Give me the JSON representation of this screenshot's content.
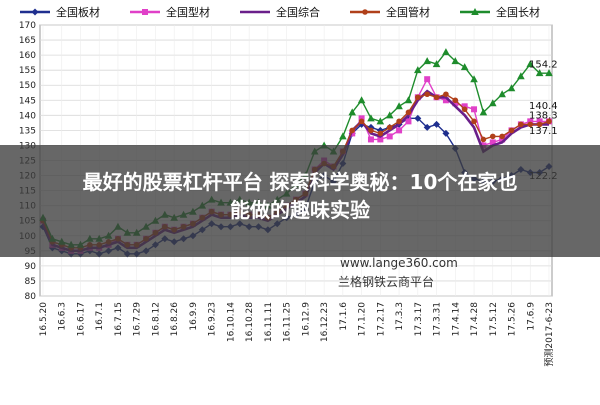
{
  "chart_data": {
    "type": "line",
    "title": "",
    "xlabel": "",
    "ylabel": "",
    "ylim": [
      80,
      170
    ],
    "yticks": [
      80,
      85,
      90,
      95,
      100,
      105,
      110,
      115,
      120,
      125,
      130,
      135,
      140,
      145,
      150,
      155,
      160,
      165,
      170
    ],
    "x_tick_labels": [
      "16.5.20",
      "16.6.3",
      "16.6.17",
      "16.7.1",
      "16.7.15",
      "16.7.29",
      "16.8.12",
      "16.8.26",
      "16.9.9",
      "16.9.23",
      "16.10.14",
      "16.10.28",
      "16.11.11",
      "16.11.25",
      "16.12.9",
      "16.12.23",
      "17.1.6",
      "17.1.20",
      "17.2.17",
      "17.3.3",
      "17.3.17",
      "17.3.31",
      "17.4.14",
      "17.4.28",
      "17.5.12",
      "17.5.26",
      "17.6.9",
      "预测2017-6-23"
    ],
    "x_count": 55,
    "legend_position": "top",
    "grid": true,
    "series": [
      {
        "name": "全国板材",
        "color": "#1f2f8f",
        "marker": "diamond",
        "values": [
          103,
          96,
          95,
          94,
          94,
          95,
          94,
          95,
          96,
          94,
          94,
          95,
          97,
          99,
          98,
          99,
          100,
          102,
          104,
          103,
          103,
          104,
          103,
          103,
          102,
          104,
          106,
          107,
          109,
          118,
          120,
          118,
          124,
          134,
          137,
          136,
          135,
          136,
          137,
          139,
          139,
          136,
          137,
          134,
          129,
          121,
          119,
          118,
          118,
          119,
          120,
          122,
          121,
          121,
          123
        ]
      },
      {
        "name": "全国型材",
        "color": "#e040c8",
        "marker": "square",
        "values": [
          105,
          97,
          96,
          95,
          95,
          96,
          96,
          97,
          99,
          97,
          97,
          99,
          101,
          103,
          102,
          103,
          104,
          106,
          108,
          107,
          107,
          108,
          107,
          107,
          106,
          108,
          110,
          112,
          114,
          122,
          125,
          123,
          128,
          134,
          139,
          132,
          132,
          133,
          135,
          138,
          146,
          152,
          146,
          145,
          144,
          143,
          142,
          130,
          131,
          132,
          135,
          137,
          138,
          138,
          138
        ]
      },
      {
        "name": "全国综合",
        "color": "#6a1f8a",
        "marker": "none",
        "values": [
          104,
          97,
          96,
          95,
          95,
          96,
          96,
          97,
          98,
          96,
          96,
          98,
          100,
          102,
          101,
          102,
          103,
          105,
          107,
          106,
          106,
          107,
          106,
          106,
          105,
          107,
          109,
          111,
          113,
          121,
          124,
          122,
          127,
          135,
          138,
          134,
          133,
          135,
          137,
          140,
          145,
          148,
          146,
          146,
          143,
          140,
          136,
          128,
          130,
          131,
          134,
          136,
          137,
          137,
          137
        ]
      },
      {
        "name": "全国管材",
        "color": "#b0401a",
        "marker": "circle",
        "values": [
          105,
          98,
          97,
          96,
          96,
          97,
          97,
          98,
          99,
          97,
          97,
          99,
          101,
          103,
          102,
          103,
          104,
          106,
          108,
          107,
          107,
          108,
          107,
          107,
          106,
          108,
          110,
          112,
          114,
          122,
          124,
          123,
          128,
          135,
          138,
          135,
          134,
          136,
          138,
          141,
          146,
          147,
          146,
          147,
          145,
          142,
          138,
          132,
          133,
          133,
          135,
          137,
          137,
          137,
          138
        ]
      },
      {
        "name": "全国长材",
        "color": "#1e8c2c",
        "marker": "triangle",
        "values": [
          106,
          99,
          98,
          97,
          97,
          99,
          99,
          100,
          103,
          101,
          101,
          103,
          105,
          107,
          106,
          107,
          108,
          110,
          112,
          111,
          111,
          112,
          111,
          111,
          110,
          112,
          114,
          117,
          120,
          128,
          130,
          128,
          133,
          141,
          145,
          139,
          138,
          140,
          143,
          145,
          155,
          158,
          157,
          161,
          158,
          156,
          152,
          141,
          144,
          147,
          149,
          153,
          157,
          154,
          154
        ]
      }
    ],
    "annotations": [
      "154.2",
      "140.4",
      "138.3",
      "137.1",
      "122.2"
    ]
  },
  "overlay": {
    "title_line1": "最好的股票杠杆平台 探索科学奥秘：10个在家也",
    "title_line2": "能做的趣味实验"
  },
  "watermark": {
    "url": "www.lange360.com",
    "platform": "兰格钢铁云商平台"
  }
}
